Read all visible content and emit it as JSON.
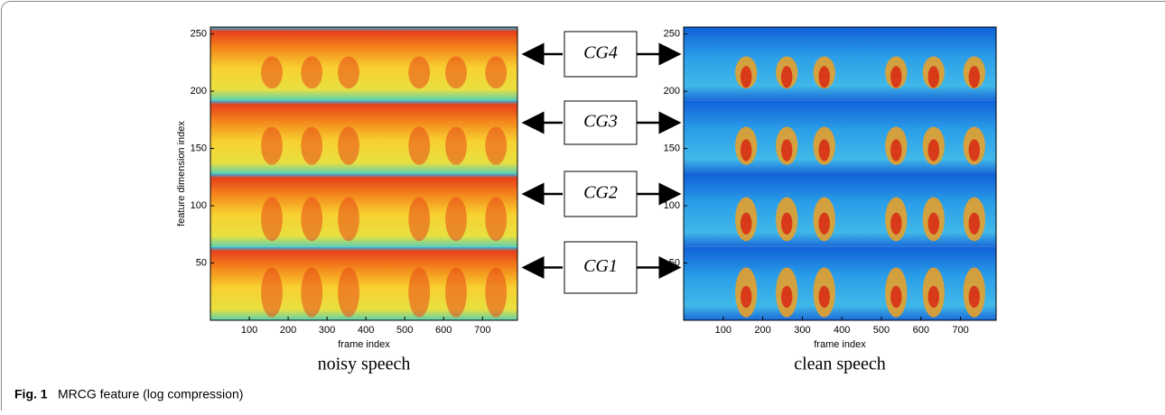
{
  "figure": {
    "caption_label": "Fig. 1",
    "caption_text": "MRCG feature (log compression)",
    "groups": [
      "CG4",
      "CG3",
      "CG2",
      "CG1"
    ],
    "panels": [
      {
        "title": "noisy speech",
        "xlabel": "frame index",
        "ylabel": "feature dimension index",
        "xlim": [
          0,
          790
        ],
        "ylim": [
          0,
          256
        ],
        "xticks": [
          100,
          200,
          300,
          400,
          500,
          600,
          700
        ],
        "yticks": [
          50,
          100,
          150,
          200,
          250
        ]
      },
      {
        "title": "clean speech",
        "xlabel": "frame index",
        "xlim": [
          0,
          790
        ],
        "ylim": [
          0,
          256
        ],
        "xticks": [
          100,
          200,
          300,
          400,
          500,
          600,
          700
        ],
        "yticks": [
          50,
          100,
          150,
          200,
          250
        ]
      }
    ]
  }
}
